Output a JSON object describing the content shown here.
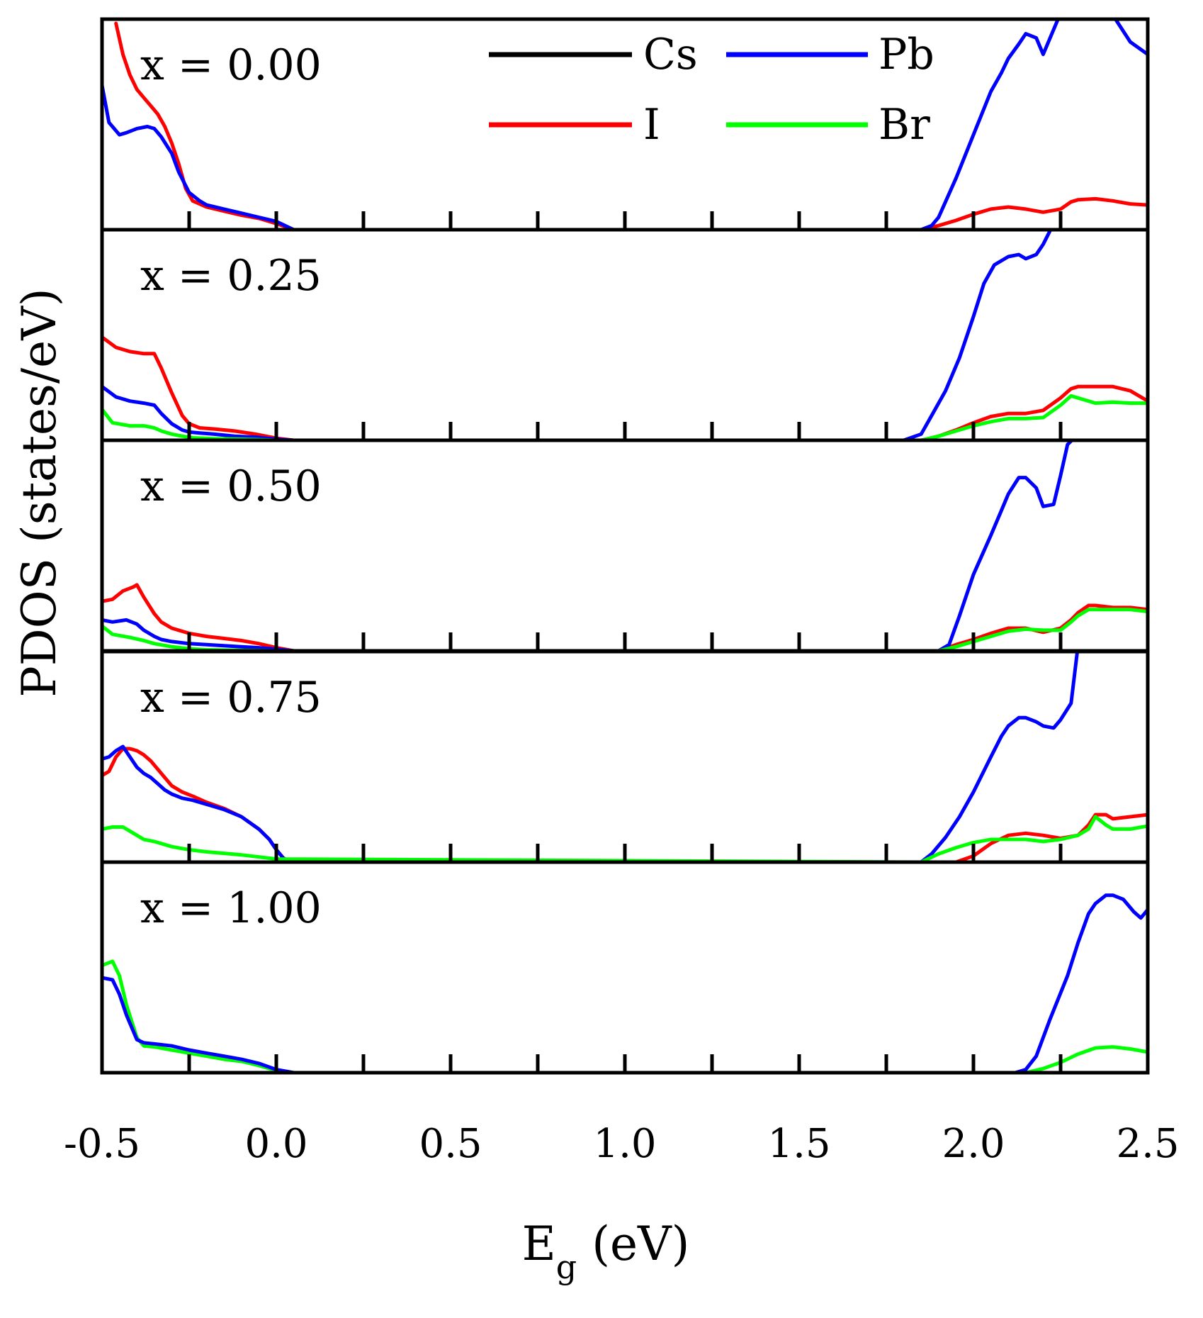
{
  "chart_data": {
    "type": "line",
    "title": "",
    "xlabel": "E",
    "xlabel_sub": "g",
    "xlabel_unit": "(eV)",
    "ylabel": "PDOS (states/eV)",
    "xlim": [
      -0.5,
      2.5
    ],
    "ylim": [
      0,
      10
    ],
    "x_ticks": [
      "-0.5",
      "0.0",
      "0.5",
      "1.0",
      "1.5",
      "2.0",
      "2.5"
    ],
    "x_tick_values": [
      -0.5,
      0.0,
      0.5,
      1.0,
      1.5,
      2.0,
      2.5
    ],
    "legend": [
      {
        "name": "Cs",
        "color": "#000000"
      },
      {
        "name": "Pb",
        "color": "#0000ff"
      },
      {
        "name": "I",
        "color": "#ff0000"
      },
      {
        "name": "Br",
        "color": "#00ff00"
      }
    ],
    "legend_position": "top-right of first panel",
    "panels": [
      {
        "label": "x = 0.00",
        "series": [
          {
            "name": "Cs",
            "x": [
              -0.5,
              2.5
            ],
            "y": [
              0,
              0
            ]
          },
          {
            "name": "I",
            "x": [
              -0.46,
              -0.44,
              -0.42,
              -0.4,
              -0.38,
              -0.36,
              -0.34,
              -0.32,
              -0.3,
              -0.28,
              -0.26,
              -0.24,
              -0.2,
              -0.15,
              -0.1,
              -0.05,
              0.0,
              0.05,
              1.85,
              1.9,
              1.95,
              2.0,
              2.05,
              2.1,
              2.15,
              2.2,
              2.25,
              2.28,
              2.3,
              2.35,
              2.4,
              2.45,
              2.5
            ],
            "y": [
              10.0,
              8.5,
              7.5,
              6.8,
              6.4,
              6.0,
              5.6,
              5.0,
              4.2,
              3.2,
              2.0,
              1.4,
              1.1,
              0.9,
              0.7,
              0.55,
              0.3,
              0.0,
              0.0,
              0.2,
              0.45,
              0.75,
              1.0,
              1.1,
              1.0,
              0.85,
              1.0,
              1.35,
              1.45,
              1.5,
              1.4,
              1.25,
              1.2
            ]
          },
          {
            "name": "Pb",
            "x": [
              -0.5,
              -0.48,
              -0.45,
              -0.43,
              -0.4,
              -0.37,
              -0.35,
              -0.33,
              -0.3,
              -0.28,
              -0.25,
              -0.22,
              -0.2,
              -0.15,
              -0.1,
              -0.05,
              0.0,
              0.05,
              1.85,
              1.88,
              1.9,
              1.95,
              2.0,
              2.05,
              2.08,
              2.1,
              2.13,
              2.15,
              2.18,
              2.2,
              2.25,
              2.3,
              2.35,
              2.4,
              2.45,
              2.5
            ],
            "y": [
              7.0,
              5.2,
              4.6,
              4.7,
              4.9,
              5.0,
              4.9,
              4.5,
              3.7,
              2.8,
              1.8,
              1.4,
              1.2,
              1.0,
              0.8,
              0.6,
              0.4,
              0.0,
              0.0,
              0.2,
              0.6,
              2.5,
              4.6,
              6.7,
              7.6,
              8.3,
              9.0,
              9.5,
              9.3,
              8.5,
              10.5,
              10.5,
              10.5,
              10.4,
              9.1,
              8.5
            ]
          }
        ]
      },
      {
        "label": "x = 0.25",
        "series": [
          {
            "name": "I",
            "x": [
              -0.5,
              -0.46,
              -0.42,
              -0.38,
              -0.35,
              -0.33,
              -0.3,
              -0.27,
              -0.25,
              -0.22,
              -0.18,
              -0.12,
              -0.06,
              0.0,
              0.05,
              1.85,
              1.9,
              1.95,
              2.0,
              2.05,
              2.1,
              2.15,
              2.2,
              2.25,
              2.28,
              2.3,
              2.35,
              2.4,
              2.45,
              2.5
            ],
            "y": [
              5.0,
              4.5,
              4.3,
              4.2,
              4.2,
              3.5,
              2.3,
              1.2,
              0.8,
              0.6,
              0.55,
              0.45,
              0.3,
              0.1,
              0.0,
              0.0,
              0.2,
              0.5,
              0.85,
              1.15,
              1.3,
              1.3,
              1.45,
              2.05,
              2.5,
              2.6,
              2.6,
              2.6,
              2.4,
              1.9
            ]
          },
          {
            "name": "Pb",
            "x": [
              -0.5,
              -0.46,
              -0.42,
              -0.38,
              -0.35,
              -0.33,
              -0.3,
              -0.27,
              -0.25,
              -0.22,
              -0.18,
              -0.12,
              -0.06,
              0.0,
              0.05,
              1.8,
              1.85,
              1.88,
              1.92,
              1.96,
              2.0,
              2.03,
              2.06,
              2.1,
              2.13,
              2.15,
              2.18,
              2.2,
              2.23
            ],
            "y": [
              2.6,
              2.1,
              1.9,
              1.8,
              1.7,
              1.3,
              0.8,
              0.5,
              0.4,
              0.35,
              0.3,
              0.2,
              0.15,
              0.05,
              0.0,
              0.0,
              0.3,
              1.2,
              2.4,
              4.0,
              6.0,
              7.6,
              8.5,
              8.9,
              9.0,
              8.8,
              9.0,
              9.5,
              10.5
            ]
          },
          {
            "name": "Br",
            "x": [
              -0.5,
              -0.47,
              -0.42,
              -0.38,
              -0.35,
              -0.33,
              -0.3,
              -0.27,
              -0.24,
              -0.18,
              -0.1,
              -0.03,
              0.0,
              1.85,
              1.9,
              1.95,
              2.0,
              2.05,
              2.1,
              2.15,
              2.2,
              2.25,
              2.28,
              2.3,
              2.35,
              2.4,
              2.45,
              2.5
            ],
            "y": [
              1.5,
              0.85,
              0.7,
              0.7,
              0.6,
              0.45,
              0.3,
              0.2,
              0.12,
              0.08,
              0.05,
              0.02,
              0.0,
              0.0,
              0.2,
              0.45,
              0.7,
              0.9,
              1.05,
              1.05,
              1.1,
              1.7,
              2.15,
              2.05,
              1.8,
              1.85,
              1.8,
              1.8
            ]
          }
        ]
      },
      {
        "label": "x = 0.50",
        "series": [
          {
            "name": "I",
            "x": [
              -0.5,
              -0.47,
              -0.44,
              -0.41,
              -0.4,
              -0.38,
              -0.35,
              -0.33,
              -0.3,
              -0.25,
              -0.2,
              -0.15,
              -0.1,
              -0.05,
              0.0,
              0.05,
              1.9,
              1.95,
              2.0,
              2.05,
              2.1,
              2.15,
              2.2,
              2.25,
              2.28,
              2.3,
              2.33,
              2.35,
              2.4,
              2.45,
              2.5
            ],
            "y": [
              2.4,
              2.5,
              2.9,
              3.1,
              3.2,
              2.6,
              1.8,
              1.4,
              1.1,
              0.85,
              0.7,
              0.6,
              0.5,
              0.35,
              0.15,
              0.0,
              0.0,
              0.3,
              0.55,
              0.85,
              1.1,
              1.1,
              0.9,
              1.1,
              1.5,
              1.85,
              2.2,
              2.2,
              2.1,
              2.1,
              2.0
            ]
          },
          {
            "name": "Pb",
            "x": [
              -0.5,
              -0.47,
              -0.43,
              -0.4,
              -0.38,
              -0.35,
              -0.33,
              -0.3,
              -0.25,
              -0.2,
              -0.15,
              -0.1,
              -0.05,
              0.0,
              0.05,
              1.9,
              1.93,
              1.96,
              2.0,
              2.05,
              2.08,
              2.1,
              2.13,
              2.15,
              2.18,
              2.2,
              2.23,
              2.25,
              2.27,
              2.3
            ],
            "y": [
              1.5,
              1.4,
              1.5,
              1.3,
              1.0,
              0.7,
              0.55,
              0.45,
              0.35,
              0.3,
              0.25,
              0.2,
              0.15,
              0.08,
              0.0,
              0.0,
              0.3,
              1.7,
              3.7,
              5.6,
              6.8,
              7.6,
              8.4,
              8.4,
              7.9,
              7.0,
              7.1,
              8.5,
              10.0,
              10.5
            ]
          },
          {
            "name": "Br",
            "x": [
              -0.5,
              -0.47,
              -0.42,
              -0.38,
              -0.35,
              -0.3,
              -0.25,
              -0.2,
              -0.1,
              0.0,
              1.9,
              1.95,
              2.0,
              2.05,
              2.1,
              2.15,
              2.2,
              2.25,
              2.28,
              2.3,
              2.33,
              2.35,
              2.4,
              2.45,
              2.5
            ],
            "y": [
              1.2,
              0.8,
              0.65,
              0.5,
              0.35,
              0.2,
              0.1,
              0.05,
              0.02,
              0.0,
              0.0,
              0.2,
              0.45,
              0.7,
              0.95,
              1.05,
              1.0,
              1.0,
              1.4,
              1.7,
              2.0,
              2.0,
              2.0,
              2.0,
              1.9
            ]
          }
        ]
      },
      {
        "label": "x = 0.75",
        "series": [
          {
            "name": "I",
            "x": [
              -0.5,
              -0.48,
              -0.46,
              -0.44,
              -0.42,
              -0.4,
              -0.38,
              -0.36,
              -0.34,
              -0.32,
              -0.3,
              -0.27,
              -0.24,
              -0.2,
              -0.15,
              -0.1,
              -0.05,
              -0.02,
              0.0,
              0.02,
              0.04,
              1.95,
              2.0,
              2.05,
              2.1,
              2.15,
              2.2,
              2.25,
              2.3,
              2.33,
              2.35,
              2.38,
              2.4,
              2.45,
              2.5
            ],
            "y": [
              4.2,
              4.4,
              5.1,
              5.5,
              5.5,
              5.4,
              5.2,
              4.9,
              4.5,
              4.1,
              3.7,
              3.4,
              3.2,
              2.9,
              2.6,
              2.2,
              1.6,
              1.1,
              0.6,
              0.2,
              0.0,
              0.0,
              0.3,
              0.9,
              1.3,
              1.4,
              1.3,
              1.15,
              1.3,
              1.8,
              2.3,
              2.3,
              2.1,
              2.2,
              2.3
            ]
          },
          {
            "name": "Pb",
            "x": [
              -0.5,
              -0.48,
              -0.46,
              -0.44,
              -0.42,
              -0.4,
              -0.38,
              -0.36,
              -0.34,
              -0.32,
              -0.3,
              -0.27,
              -0.24,
              -0.2,
              -0.15,
              -0.1,
              -0.05,
              -0.02,
              0.0,
              0.02,
              0.04,
              1.85,
              1.88,
              1.92,
              1.96,
              2.0,
              2.05,
              2.08,
              2.1,
              2.13,
              2.15,
              2.18,
              2.2,
              2.23,
              2.25,
              2.28,
              2.3
            ],
            "y": [
              5.0,
              5.1,
              5.4,
              5.6,
              5.1,
              4.6,
              4.3,
              4.1,
              3.8,
              3.5,
              3.3,
              3.1,
              3.0,
              2.8,
              2.55,
              2.2,
              1.6,
              1.1,
              0.6,
              0.2,
              0.0,
              0.0,
              0.4,
              1.2,
              2.2,
              3.4,
              5.1,
              6.1,
              6.6,
              7.0,
              7.0,
              6.8,
              6.6,
              6.5,
              6.9,
              7.7,
              10.5
            ]
          },
          {
            "name": "Br",
            "x": [
              -0.5,
              -0.47,
              -0.44,
              -0.42,
              -0.4,
              -0.38,
              -0.35,
              -0.3,
              -0.25,
              -0.2,
              -0.1,
              0.0,
              1.85,
              1.9,
              1.95,
              2.0,
              2.05,
              2.1,
              2.15,
              2.2,
              2.25,
              2.3,
              2.33,
              2.35,
              2.38,
              2.4,
              2.45,
              2.5
            ],
            "y": [
              1.6,
              1.7,
              1.7,
              1.5,
              1.3,
              1.1,
              1.0,
              0.75,
              0.6,
              0.5,
              0.35,
              0.15,
              0.0,
              0.4,
              0.7,
              0.95,
              1.1,
              1.1,
              1.1,
              1.0,
              1.1,
              1.3,
              1.6,
              2.2,
              1.8,
              1.6,
              1.6,
              1.75
            ]
          }
        ]
      },
      {
        "label": "x = 1.00",
        "series": [
          {
            "name": "Cs",
            "x": [
              -0.5,
              2.5
            ],
            "y": [
              0,
              0
            ]
          },
          {
            "name": "Br",
            "x": [
              -0.5,
              -0.47,
              -0.45,
              -0.43,
              -0.4,
              -0.38,
              -0.35,
              -0.3,
              -0.25,
              -0.2,
              -0.15,
              -0.1,
              -0.05,
              0.0,
              0.05,
              2.15,
              2.2,
              2.25,
              2.3,
              2.35,
              2.4,
              2.45,
              2.5
            ],
            "y": [
              5.2,
              5.4,
              4.7,
              3.3,
              1.7,
              1.3,
              1.25,
              1.1,
              0.95,
              0.8,
              0.65,
              0.55,
              0.35,
              0.1,
              0.0,
              0.0,
              0.2,
              0.5,
              0.9,
              1.2,
              1.25,
              1.15,
              1.0
            ]
          },
          {
            "name": "Pb",
            "x": [
              -0.5,
              -0.47,
              -0.45,
              -0.43,
              -0.4,
              -0.38,
              -0.35,
              -0.3,
              -0.25,
              -0.2,
              -0.15,
              -0.1,
              -0.05,
              0.0,
              0.05,
              2.12,
              2.15,
              2.18,
              2.22,
              2.27,
              2.3,
              2.33,
              2.35,
              2.38,
              2.4,
              2.43,
              2.46,
              2.48,
              2.5
            ],
            "y": [
              4.6,
              4.5,
              3.8,
              2.8,
              1.6,
              1.45,
              1.4,
              1.3,
              1.1,
              0.95,
              0.8,
              0.65,
              0.45,
              0.15,
              0.0,
              0.0,
              0.15,
              0.8,
              2.6,
              4.7,
              6.3,
              7.7,
              8.2,
              8.6,
              8.6,
              8.4,
              7.8,
              7.5,
              7.9
            ]
          }
        ]
      }
    ]
  }
}
